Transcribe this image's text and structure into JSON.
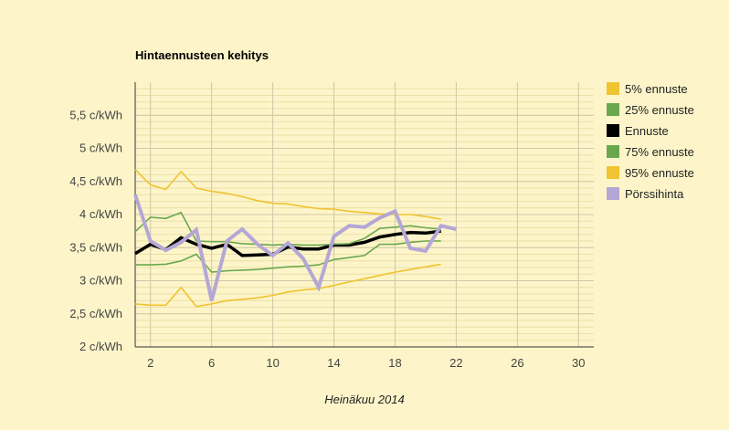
{
  "chart_data": {
    "type": "line",
    "title": "Hintaennusteen kehitys",
    "xlabel": "Heinäkuu 2014",
    "ylabel": "",
    "xlim": [
      1,
      31
    ],
    "ylim": [
      2,
      6
    ],
    "x_ticks": [
      2,
      6,
      10,
      14,
      18,
      22,
      26,
      30
    ],
    "y_ticks": [
      {
        "value": 2,
        "label": "2 c/kWh"
      },
      {
        "value": 2.5,
        "label": "2,5 c/kWh"
      },
      {
        "value": 3,
        "label": "3 c/kWh"
      },
      {
        "value": 3.5,
        "label": "3,5 c/kWh"
      },
      {
        "value": 4,
        "label": "4 c/kWh"
      },
      {
        "value": 4.5,
        "label": "4,5 c/kWh"
      },
      {
        "value": 5,
        "label": "5 c/kWh"
      },
      {
        "value": 5.5,
        "label": "5,5 c/kWh"
      }
    ],
    "grid": true,
    "legend_position": "right",
    "series": [
      {
        "name": "5% ennuste",
        "color": "#f0c330",
        "x": [
          1,
          2,
          3,
          4,
          5,
          6,
          7,
          8,
          9,
          10,
          11,
          12,
          13,
          14,
          15,
          16,
          17,
          18,
          19,
          20,
          21
        ],
        "values": [
          2.65,
          2.63,
          2.63,
          2.9,
          2.61,
          2.65,
          2.7,
          2.72,
          2.74,
          2.78,
          2.83,
          2.86,
          2.88,
          2.93,
          2.98,
          3.03,
          3.08,
          3.13,
          3.17,
          3.21,
          3.25
        ]
      },
      {
        "name": "25% ennuste",
        "color": "#6aa84f",
        "x": [
          1,
          2,
          3,
          4,
          5,
          6,
          7,
          8,
          9,
          10,
          11,
          12,
          13,
          14,
          15,
          16,
          17,
          18,
          19,
          20,
          21
        ],
        "values": [
          3.24,
          3.24,
          3.25,
          3.3,
          3.4,
          3.13,
          3.15,
          3.16,
          3.17,
          3.19,
          3.21,
          3.22,
          3.24,
          3.32,
          3.35,
          3.38,
          3.55,
          3.55,
          3.58,
          3.6,
          3.6
        ]
      },
      {
        "name": "Ennuste",
        "color": "#000000",
        "x": [
          1,
          2,
          3,
          4,
          5,
          6,
          7,
          8,
          9,
          10,
          11,
          12,
          13,
          14,
          15,
          16,
          17,
          18,
          19,
          20,
          21
        ],
        "values": [
          3.41,
          3.55,
          3.47,
          3.65,
          3.55,
          3.49,
          3.55,
          3.38,
          3.39,
          3.4,
          3.51,
          3.48,
          3.48,
          3.54,
          3.54,
          3.58,
          3.66,
          3.7,
          3.73,
          3.72,
          3.75
        ]
      },
      {
        "name": "75% ennuste",
        "color": "#6aa84f",
        "x": [
          1,
          2,
          3,
          4,
          5,
          6,
          7,
          8,
          9,
          10,
          11,
          12,
          13,
          14,
          15,
          16,
          17,
          18,
          19,
          20,
          21
        ],
        "values": [
          3.74,
          3.96,
          3.94,
          4.03,
          3.6,
          3.59,
          3.59,
          3.56,
          3.55,
          3.54,
          3.55,
          3.54,
          3.54,
          3.55,
          3.56,
          3.64,
          3.79,
          3.81,
          3.83,
          3.8,
          3.78
        ]
      },
      {
        "name": "95% ennuste",
        "color": "#f0c330",
        "x": [
          1,
          2,
          3,
          4,
          5,
          6,
          7,
          8,
          9,
          10,
          11,
          12,
          13,
          14,
          15,
          16,
          17,
          18,
          19,
          20,
          21
        ],
        "values": [
          4.68,
          4.45,
          4.38,
          4.65,
          4.4,
          4.35,
          4.32,
          4.27,
          4.21,
          4.17,
          4.16,
          4.12,
          4.09,
          4.08,
          4.05,
          4.03,
          4.01,
          4.0,
          4.0,
          3.97,
          3.93
        ]
      },
      {
        "name": "Pörssihinta",
        "color": "#b4a7d6",
        "x": [
          1,
          2,
          3,
          4,
          5,
          6,
          7,
          8,
          9,
          10,
          11,
          12,
          13,
          14,
          15,
          16,
          17,
          18,
          19,
          20,
          21,
          22
        ],
        "values": [
          4.3,
          3.6,
          3.46,
          3.58,
          3.77,
          2.7,
          3.6,
          3.78,
          3.55,
          3.38,
          3.57,
          3.33,
          2.9,
          3.67,
          3.83,
          3.81,
          3.95,
          4.05,
          3.49,
          3.45,
          3.83,
          3.78
        ]
      }
    ]
  }
}
